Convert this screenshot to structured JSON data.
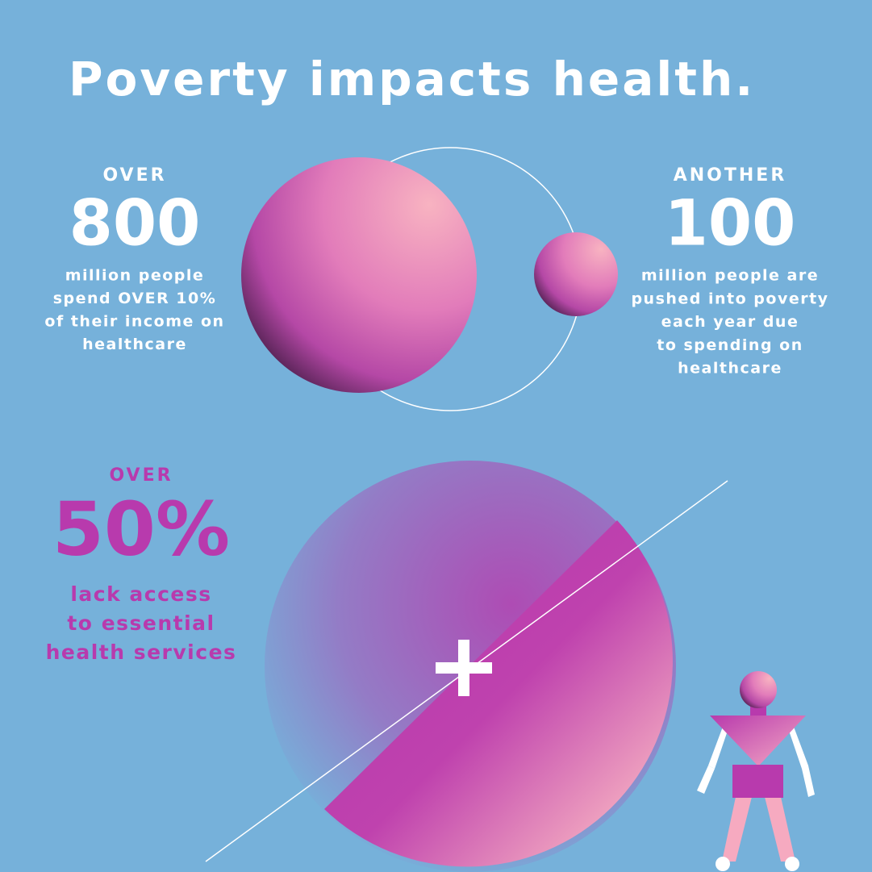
{
  "title": "Poverty impacts health.",
  "stats": [
    {
      "label": "OVER",
      "number": "800",
      "lines": [
        "million people",
        "spend OVER 10%",
        "of their income on",
        "healthcare"
      ]
    },
    {
      "label": "ANOTHER",
      "number": "100",
      "lines": [
        "million people are",
        "pushed into poverty",
        "each year due",
        "to spending on",
        "healthcare"
      ]
    },
    {
      "label": "OVER",
      "number": "50%",
      "lines": [
        "lack access",
        "to essential",
        "health services"
      ]
    }
  ]
}
